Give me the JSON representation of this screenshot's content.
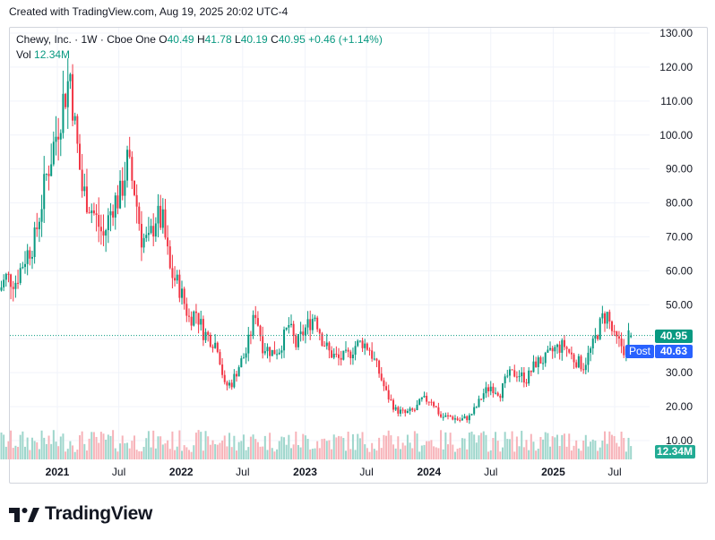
{
  "header": {
    "created_text": "Created with TradingView.com, Aug 19, 2025 20:02 UTC-4"
  },
  "legend": {
    "symbol": "Chewy, Inc.",
    "interval": "1W",
    "exchange": "Cboe One",
    "open_label": "O",
    "open": "40.49",
    "high_label": "H",
    "high": "41.78",
    "low_label": "L",
    "low": "40.19",
    "close_label": "C",
    "close": "40.95",
    "change": "+0.46 (+1.14%)",
    "vol_label": "Vol",
    "volume": "12.34M"
  },
  "badges": {
    "last_price": "40.95",
    "post_label": "Post",
    "post_price": "40.63",
    "volume": "12.34M"
  },
  "footer": {
    "brand": "TradingView"
  },
  "colors": {
    "up": "#089981",
    "down": "#f23645",
    "grid": "#f0f3fa",
    "axis_text": "#131722",
    "post_badge": "#2962ff"
  },
  "chart_data": {
    "type": "candlestick",
    "symbol": "Chewy, Inc.",
    "interval": "1W",
    "y_ticks": [
      "130.00",
      "120.00",
      "110.00",
      "100.00",
      "90.00",
      "80.00",
      "70.00",
      "60.00",
      "50.00",
      "40.00",
      "30.00",
      "20.00",
      "10.00"
    ],
    "ylim": [
      10,
      130
    ],
    "x_ticks": [
      "2021",
      "Jul",
      "2022",
      "Jul",
      "2023",
      "Jul",
      "2024",
      "Jul",
      "2025",
      "Jul"
    ],
    "x_tick_dates": [
      "2021-01-01",
      "2021-07-01",
      "2022-01-01",
      "2022-07-01",
      "2023-01-01",
      "2023-07-01",
      "2024-01-01",
      "2024-07-01",
      "2025-01-01",
      "2025-07-01"
    ],
    "date_range": [
      "2020-07-13",
      "2025-08-18"
    ],
    "price_path": [
      [
        "2020-07-13",
        53
      ],
      [
        "2020-08-10",
        58
      ],
      [
        "2020-09-07",
        57
      ],
      [
        "2020-10-05",
        64
      ],
      [
        "2020-11-02",
        69
      ],
      [
        "2020-12-07",
        88
      ],
      [
        "2021-01-04",
        100
      ],
      [
        "2021-01-25",
        110
      ],
      [
        "2021-02-15",
        118
      ],
      [
        "2021-03-01",
        102
      ],
      [
        "2021-03-22",
        84
      ],
      [
        "2021-04-12",
        80
      ],
      [
        "2021-05-03",
        75
      ],
      [
        "2021-05-24",
        70
      ],
      [
        "2021-06-21",
        80
      ],
      [
        "2021-07-12",
        82
      ],
      [
        "2021-08-02",
        92
      ],
      [
        "2021-08-23",
        84
      ],
      [
        "2021-09-13",
        70
      ],
      [
        "2021-10-04",
        68
      ],
      [
        "2021-10-25",
        76
      ],
      [
        "2021-11-15",
        74
      ],
      [
        "2021-12-06",
        60
      ],
      [
        "2022-01-03",
        55
      ],
      [
        "2022-01-31",
        46
      ],
      [
        "2022-02-21",
        48
      ],
      [
        "2022-03-14",
        42
      ],
      [
        "2022-04-04",
        40
      ],
      [
        "2022-04-25",
        38
      ],
      [
        "2022-05-16",
        26
      ],
      [
        "2022-06-06",
        27
      ],
      [
        "2022-06-27",
        32
      ],
      [
        "2022-07-18",
        36
      ],
      [
        "2022-08-15",
        48
      ],
      [
        "2022-09-05",
        38
      ],
      [
        "2022-10-03",
        36
      ],
      [
        "2022-10-24",
        37
      ],
      [
        "2022-11-21",
        44
      ],
      [
        "2022-12-12",
        38
      ],
      [
        "2023-01-09",
        43
      ],
      [
        "2023-02-06",
        47
      ],
      [
        "2023-02-27",
        40
      ],
      [
        "2023-03-20",
        36
      ],
      [
        "2023-04-17",
        34
      ],
      [
        "2023-05-15",
        35
      ],
      [
        "2023-06-05",
        38
      ],
      [
        "2023-06-26",
        39
      ],
      [
        "2023-07-17",
        37
      ],
      [
        "2023-08-14",
        30
      ],
      [
        "2023-09-04",
        24
      ],
      [
        "2023-10-02",
        19
      ],
      [
        "2023-10-30",
        18
      ],
      [
        "2023-11-27",
        19
      ],
      [
        "2023-12-18",
        22
      ],
      [
        "2024-01-15",
        22
      ],
      [
        "2024-02-12",
        17
      ],
      [
        "2024-03-11",
        17
      ],
      [
        "2024-04-08",
        16
      ],
      [
        "2024-05-06",
        17
      ],
      [
        "2024-05-27",
        20
      ],
      [
        "2024-06-17",
        24
      ],
      [
        "2024-07-08",
        26
      ],
      [
        "2024-08-05",
        24
      ],
      [
        "2024-08-26",
        29
      ],
      [
        "2024-09-23",
        30
      ],
      [
        "2024-10-21",
        28
      ],
      [
        "2024-11-18",
        33
      ],
      [
        "2024-12-16",
        34
      ],
      [
        "2025-01-13",
        37
      ],
      [
        "2025-02-10",
        38
      ],
      [
        "2025-03-10",
        34
      ],
      [
        "2025-04-07",
        32
      ],
      [
        "2025-05-05",
        38
      ],
      [
        "2025-06-02",
        46
      ],
      [
        "2025-06-16",
        47
      ],
      [
        "2025-07-07",
        40
      ],
      [
        "2025-07-28",
        38
      ],
      [
        "2025-08-11",
        36
      ],
      [
        "2025-08-18",
        41
      ]
    ],
    "last_bar": {
      "date": "2025-08-18",
      "open": 40.49,
      "high": 41.78,
      "low": 40.19,
      "close": 40.95,
      "volume": "12.34M"
    },
    "post_price": 40.63,
    "grid": true,
    "volume_pane": true
  }
}
